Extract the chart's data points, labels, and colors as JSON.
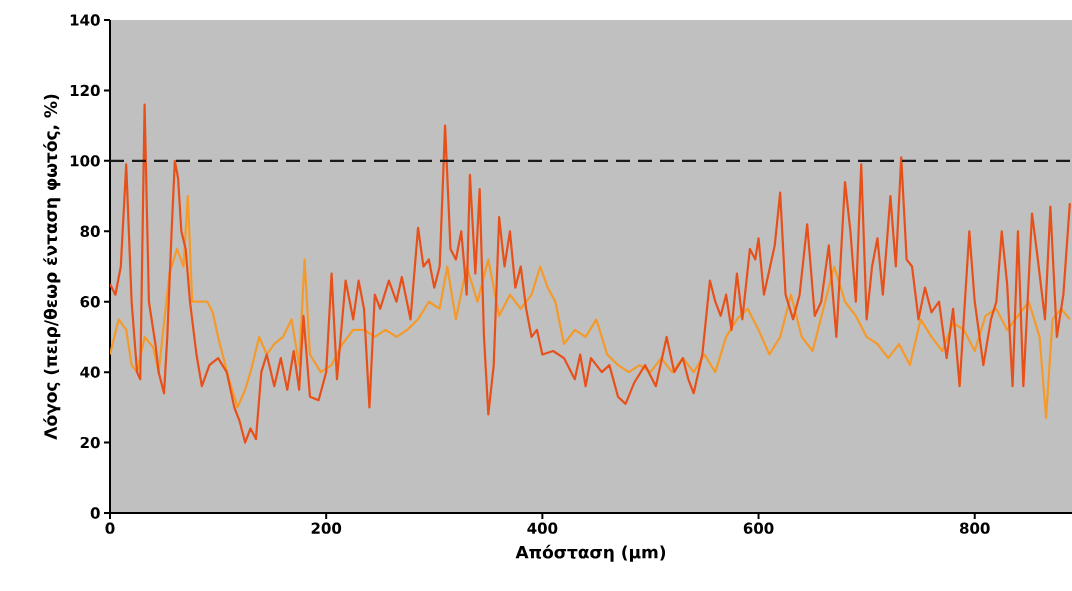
{
  "chart_data": {
    "type": "line",
    "xlabel": "Απόσταση (μm)",
    "ylabel": "Λόγος (πειρ/θεωρ ένταση φωτός, %)",
    "xlim": [
      0,
      890
    ],
    "ylim": [
      0,
      140
    ],
    "xticks": [
      0,
      200,
      400,
      600,
      800
    ],
    "yticks": [
      0,
      20,
      40,
      60,
      80,
      100,
      120,
      140
    ],
    "grid": false,
    "ref_lines": [
      {
        "axis": "y",
        "value": 100,
        "color": "#1a1a1a",
        "line_style": "dashed"
      }
    ],
    "series": [
      {
        "color": "#f59a2a",
        "x": [
          0,
          8,
          15,
          20,
          25,
          32,
          40,
          45,
          55,
          62,
          68,
          72,
          76,
          82,
          90,
          95,
          100,
          110,
          118,
          125,
          130,
          138,
          145,
          152,
          160,
          168,
          175,
          180,
          185,
          195,
          205,
          215,
          225,
          235,
          245,
          255,
          265,
          275,
          285,
          295,
          305,
          312,
          320,
          330,
          340,
          350,
          360,
          370,
          380,
          390,
          398,
          405,
          412,
          420,
          430,
          440,
          450,
          460,
          470,
          480,
          490,
          500,
          510,
          520,
          530,
          540,
          550,
          560,
          570,
          580,
          590,
          600,
          610,
          620,
          630,
          640,
          650,
          660,
          670,
          680,
          690,
          700,
          710,
          720,
          730,
          740,
          750,
          760,
          770,
          780,
          790,
          800,
          810,
          820,
          830,
          840,
          850,
          860,
          866,
          872,
          880,
          888
        ],
        "values": [
          45,
          55,
          52,
          42,
          40,
          50,
          47,
          40,
          68,
          75,
          70,
          90,
          60,
          60,
          60,
          57,
          50,
          38,
          30,
          35,
          40,
          50,
          45,
          48,
          50,
          55,
          42,
          72,
          45,
          40,
          42,
          48,
          52,
          52,
          50,
          52,
          50,
          52,
          55,
          60,
          58,
          70,
          55,
          70,
          60,
          72,
          56,
          62,
          58,
          62,
          70,
          64,
          60,
          48,
          52,
          50,
          55,
          45,
          42,
          40,
          42,
          40,
          44,
          40,
          44,
          40,
          45,
          40,
          50,
          55,
          58,
          52,
          45,
          50,
          62,
          50,
          46,
          58,
          70,
          60,
          56,
          50,
          48,
          44,
          48,
          42,
          55,
          50,
          46,
          54,
          52,
          46,
          56,
          58,
          52,
          56,
          60,
          50,
          27,
          55,
          58,
          55
        ]
      },
      {
        "color": "#e8501a",
        "x": [
          0,
          5,
          10,
          15,
          20,
          25,
          28,
          32,
          36,
          42,
          45,
          50,
          53,
          57,
          60,
          63,
          66,
          70,
          74,
          80,
          85,
          92,
          100,
          108,
          115,
          120,
          125,
          130,
          135,
          140,
          145,
          152,
          158,
          164,
          170,
          175,
          179,
          185,
          193,
          200,
          205,
          210,
          218,
          225,
          230,
          235,
          240,
          245,
          250,
          258,
          265,
          270,
          278,
          285,
          290,
          295,
          300,
          305,
          310,
          315,
          320,
          325,
          330,
          333,
          338,
          342,
          346,
          350,
          355,
          360,
          365,
          370,
          375,
          380,
          385,
          390,
          395,
          400,
          410,
          420,
          430,
          435,
          440,
          445,
          455,
          462,
          470,
          477,
          485,
          495,
          505,
          515,
          522,
          530,
          535,
          540,
          548,
          555,
          560,
          565,
          570,
          575,
          580,
          585,
          592,
          597,
          600,
          605,
          615,
          620,
          625,
          632,
          638,
          645,
          652,
          658,
          665,
          672,
          680,
          685,
          690,
          695,
          700,
          705,
          710,
          715,
          722,
          727,
          732,
          737,
          742,
          748,
          754,
          760,
          767,
          774,
          780,
          786,
          795,
          800,
          808,
          815,
          820,
          825,
          830,
          835,
          840,
          845,
          853,
          858,
          865,
          870,
          876,
          882,
          888
        ],
        "values": [
          65,
          62,
          70,
          99,
          60,
          40,
          38,
          116,
          60,
          48,
          40,
          34,
          50,
          80,
          100,
          95,
          80,
          75,
          60,
          45,
          36,
          42,
          44,
          40,
          30,
          26,
          20,
          24,
          21,
          40,
          45,
          36,
          44,
          35,
          46,
          35,
          56,
          33,
          32,
          40,
          68,
          38,
          66,
          55,
          66,
          58,
          30,
          62,
          58,
          66,
          60,
          67,
          55,
          81,
          70,
          72,
          64,
          70,
          110,
          75,
          72,
          80,
          62,
          96,
          68,
          92,
          50,
          28,
          42,
          84,
          70,
          80,
          64,
          70,
          58,
          50,
          52,
          45,
          46,
          44,
          38,
          45,
          36,
          44,
          40,
          42,
          33,
          31,
          37,
          42,
          36,
          50,
          40,
          44,
          38,
          34,
          45,
          66,
          60,
          56,
          62,
          52,
          68,
          55,
          75,
          72,
          78,
          62,
          76,
          91,
          62,
          55,
          62,
          82,
          56,
          60,
          76,
          50,
          94,
          80,
          60,
          99,
          55,
          70,
          78,
          62,
          90,
          70,
          101,
          72,
          70,
          55,
          64,
          57,
          60,
          44,
          58,
          36,
          80,
          60,
          42,
          55,
          60,
          80,
          65,
          36,
          80,
          36,
          85,
          73,
          55,
          87,
          50,
          62,
          88
        ]
      }
    ]
  }
}
